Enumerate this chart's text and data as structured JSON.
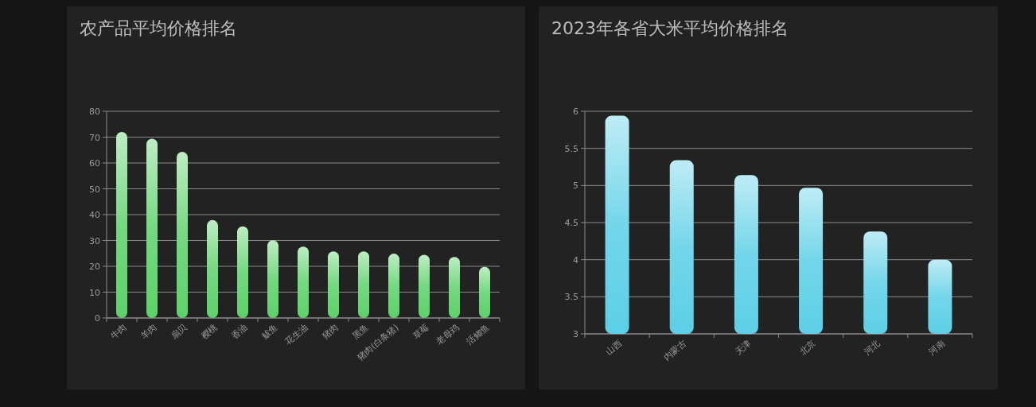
{
  "chart_data": [
    {
      "type": "bar",
      "title": "农产品平均价格排名",
      "categories": [
        "牛肉",
        "羊肉",
        "扇贝",
        "樱桃",
        "香油",
        "鲅鱼",
        "花生油",
        "猪肉",
        "黑鱼",
        "猪肉(白条猪)",
        "草莓",
        "老母鸡",
        "活鲫鱼"
      ],
      "series": [
        {
          "color": "#5cd26a",
          "values": [
            72,
            69.4,
            64.3,
            37.9,
            35.5,
            30.1,
            27.6,
            25.8,
            25.8,
            24.9,
            24.5,
            23.6,
            19.8
          ]
        }
      ],
      "ylim": [
        0,
        80
      ],
      "yticks": [
        0,
        10,
        20,
        30,
        40,
        50,
        60,
        70,
        80
      ],
      "grid": "y"
    },
    {
      "type": "bar",
      "title": "2023年各省大米平均价格排名",
      "categories": [
        "山西",
        "内蒙古",
        "天津",
        "北京",
        "河北",
        "河南"
      ],
      "series": [
        {
          "color": "#5ccfe6",
          "values": [
            5.94,
            5.34,
            5.14,
            4.97,
            4.38,
            4.0
          ]
        }
      ],
      "ylim": [
        3,
        6
      ],
      "yticks": [
        3,
        3.5,
        4,
        4.5,
        5,
        5.5,
        6
      ],
      "grid": "y"
    }
  ]
}
